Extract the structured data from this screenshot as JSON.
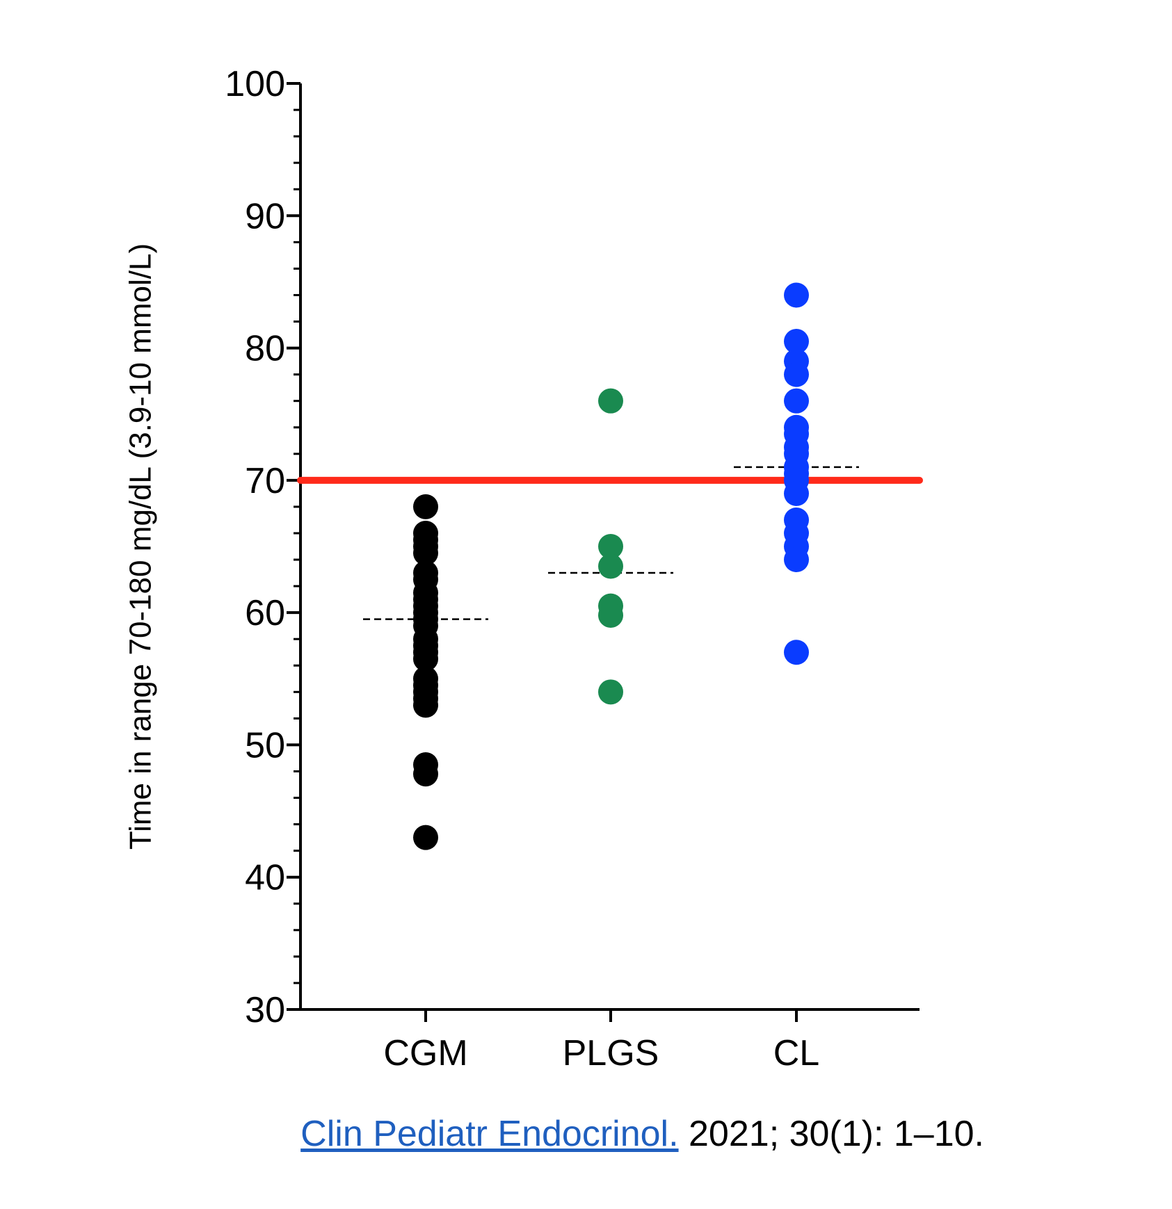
{
  "chart_data": {
    "type": "scatter",
    "title": "",
    "xlabel": "",
    "ylabel": "Time in range 70-180 mg/dL (3.9-10 mmol/L)",
    "ylim": [
      30,
      100
    ],
    "yticks": [
      "30",
      "40",
      "50",
      "60",
      "70",
      "80",
      "90",
      "100"
    ],
    "categories": [
      "CGM",
      "PLGS",
      "CL"
    ],
    "threshold": {
      "value": 70,
      "color": "#ff2a1a"
    },
    "series": [
      {
        "name": "CGM",
        "color": "#000000",
        "mean": 59.5,
        "values": [
          68,
          66,
          65.5,
          65,
          64.5,
          63,
          62.5,
          61.5,
          61,
          60.5,
          60,
          59.5,
          59,
          58,
          57.5,
          57,
          56.5,
          55,
          54.5,
          54,
          53.5,
          53,
          48.5,
          47.8,
          43
        ]
      },
      {
        "name": "PLGS",
        "color": "#1a8a50",
        "mean": 63,
        "values": [
          76,
          65,
          63.5,
          60.5,
          59.8,
          54
        ]
      },
      {
        "name": "CL",
        "color": "#0a3cff",
        "mean": 71,
        "values": [
          84,
          80.5,
          79,
          78,
          76,
          74,
          73.5,
          72.5,
          72,
          71,
          70.5,
          70,
          69,
          67,
          66,
          65,
          64,
          57
        ]
      }
    ]
  },
  "citation": {
    "journal": "Clin Pediatr Endocrinol.",
    "details": " 2021; 30(1): 1–10."
  }
}
